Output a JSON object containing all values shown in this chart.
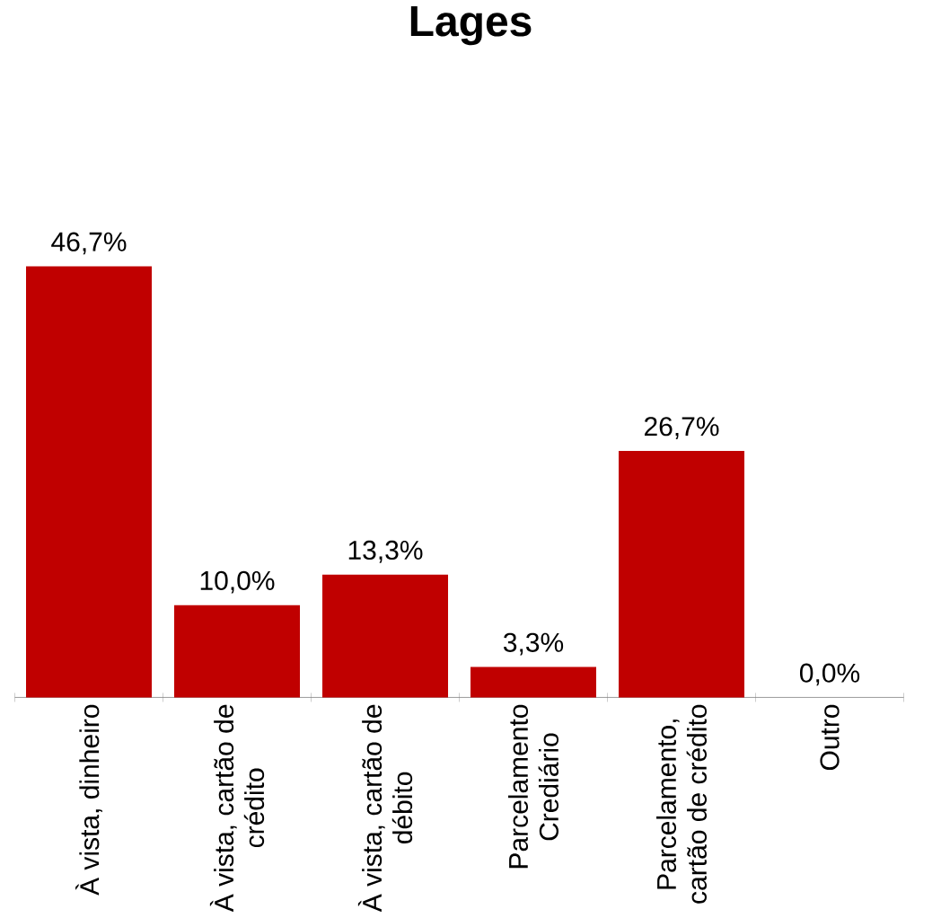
{
  "chart_data": {
    "type": "bar",
    "title": "Lages",
    "categories": [
      "À vista, dinheiro",
      "À vista, cartão de crédito",
      "À vista, cartão de débito",
      "Parcelamento Crediário",
      "Parcelamento, cartão de crédito",
      "Outro"
    ],
    "values": [
      46.7,
      10.0,
      13.3,
      3.3,
      26.7,
      0.0
    ],
    "value_labels": [
      "46,7%",
      "10,0%",
      "13,3%",
      "3,3%",
      "26,7%",
      "0,0%"
    ],
    "color": "#c00000",
    "tick_labels": "x"
  }
}
